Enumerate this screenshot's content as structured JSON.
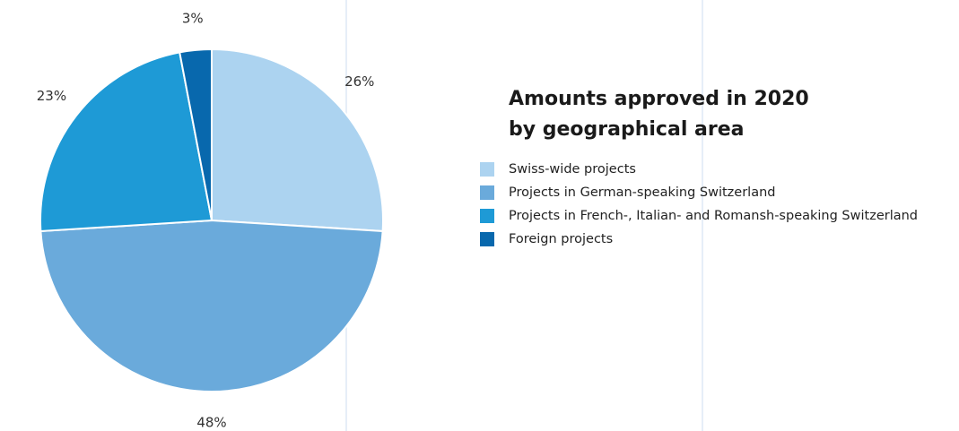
{
  "chart_data": {
    "type": "pie",
    "title": [
      "Amounts approved in 2020",
      "by geographical area"
    ],
    "categories": [
      "Swiss-wide projects",
      "Projects in German-speaking Switzerland",
      "Projects in French-, Italian- and Romansh-speaking Switzerland",
      "Foreign projects"
    ],
    "values": [
      26,
      48,
      23,
      3
    ],
    "value_labels": [
      "26%",
      "48%",
      "23%",
      "3%"
    ],
    "colors": [
      "#acd3f0",
      "#6aaadb",
      "#1e9ad6",
      "#0868ad"
    ],
    "legend": "right"
  }
}
